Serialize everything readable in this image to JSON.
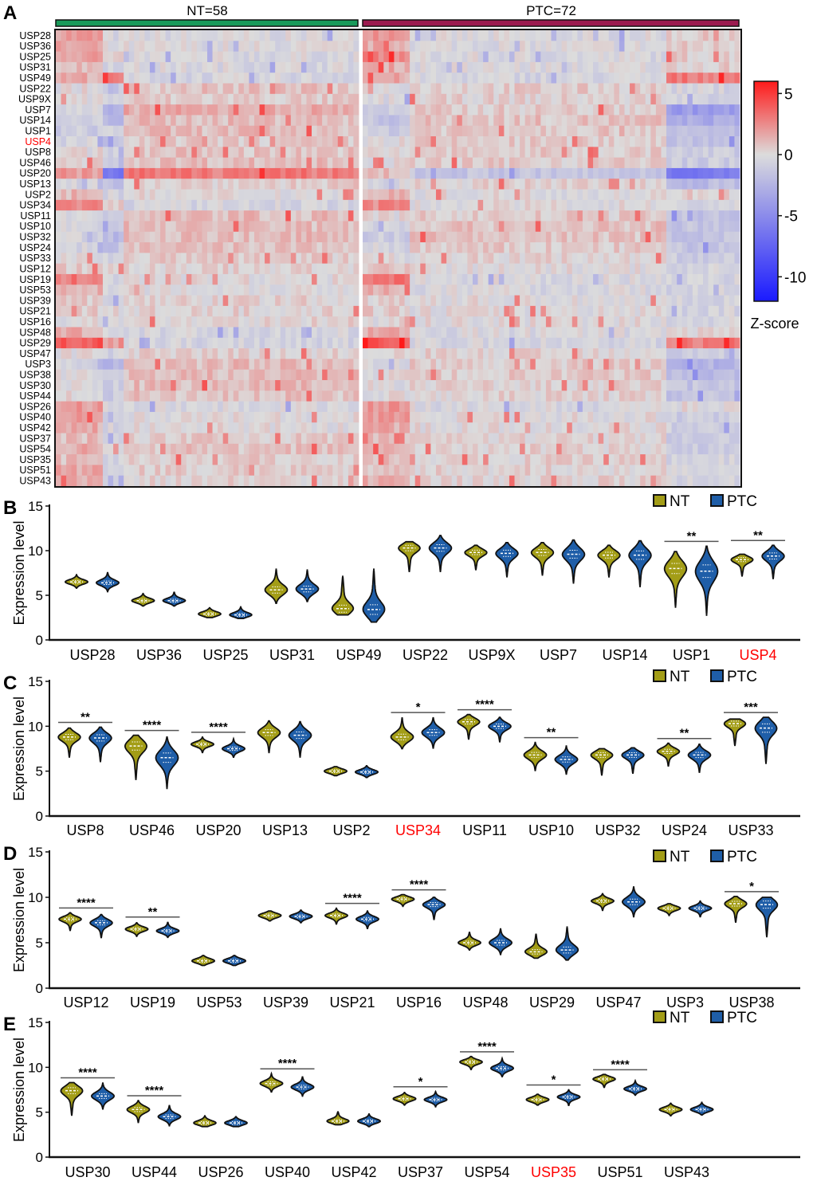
{
  "chart_data": [
    {
      "type": "heatmap",
      "panel_letter": "A",
      "groups": [
        {
          "label": "NT=58",
          "n": 58,
          "color": "#1a9a5a"
        },
        {
          "label": "PTC=72",
          "n": 72,
          "color": "#9b1b4f"
        }
      ],
      "highlight_color": "#ff0000",
      "highlighted_rows": [
        "USP4"
      ],
      "rows": [
        "USP28",
        "USP36",
        "USP25",
        "USP31",
        "USP49",
        "USP22",
        "USP9X",
        "USP7",
        "USP14",
        "USP1",
        "USP4",
        "USP8",
        "USP46",
        "USP20",
        "USP13",
        "USP2",
        "USP34",
        "USP11",
        "USP10",
        "USP32",
        "USP24",
        "USP33",
        "USP12",
        "USP19",
        "USP53",
        "USP39",
        "USP21",
        "USP16",
        "USP48",
        "USP29",
        "USP47",
        "USP3",
        "USP38",
        "USP30",
        "USP44",
        "USP26",
        "USP40",
        "USP42",
        "USP37",
        "USP54",
        "USP35",
        "USP51",
        "USP43"
      ],
      "column_clusters": {
        "nt": [
          9,
          4,
          45
        ],
        "ptc": [
          9,
          49,
          14
        ]
      },
      "row_cluster_mean_z": [
        [
          2,
          -0.5,
          -0.3,
          2.5,
          -0.3,
          0.5
        ],
        [
          1.5,
          -0.3,
          -0.2,
          1.5,
          -0.2,
          0.5
        ],
        [
          2,
          0,
          -0.3,
          2.5,
          -0.3,
          0.5
        ],
        [
          1,
          -0.3,
          -0.3,
          1.5,
          -0.2,
          0.5
        ],
        [
          1.5,
          2.5,
          -0.5,
          1.5,
          -0.5,
          3
        ],
        [
          0,
          -1.5,
          0.8,
          0,
          0.5,
          -0.5
        ],
        [
          0,
          -0.5,
          0.5,
          -0.3,
          0.3,
          -0.5
        ],
        [
          -0.5,
          -3,
          1.5,
          -1,
          0.5,
          -4
        ],
        [
          -1,
          -2,
          1,
          -1.5,
          0.8,
          -3
        ],
        [
          -1,
          -0.5,
          1,
          -1,
          0.8,
          -2
        ],
        [
          -0.5,
          -2,
          0.5,
          0,
          0.5,
          -1.5
        ],
        [
          0,
          -0.5,
          0.8,
          0,
          0.5,
          -1
        ],
        [
          0.3,
          -0.5,
          1,
          0,
          0.5,
          -1
        ],
        [
          2,
          -6,
          3,
          1,
          -1.5,
          -6
        ],
        [
          -0.5,
          -1.5,
          0.5,
          -0.5,
          0.3,
          -2
        ],
        [
          1.2,
          -0.5,
          0,
          1.2,
          0,
          0.5
        ],
        [
          2.5,
          0.5,
          -0.5,
          2.5,
          0,
          -0.5
        ],
        [
          0,
          -1.5,
          1,
          0,
          0.5,
          -1.5
        ],
        [
          -0.5,
          -1,
          1,
          -0.5,
          0.8,
          -1.5
        ],
        [
          -0.5,
          -2,
          1,
          -1,
          0.8,
          -1.5
        ],
        [
          -0.5,
          -1.5,
          0.8,
          -0.5,
          0.5,
          -1.5
        ],
        [
          0,
          -0.5,
          0.5,
          0,
          0.3,
          -1
        ],
        [
          0.5,
          0,
          0.3,
          0.5,
          0,
          -0.5
        ],
        [
          3,
          -0.5,
          0,
          3.5,
          -0.3,
          -0.5
        ],
        [
          1.5,
          -0.5,
          0,
          1.5,
          -0.3,
          -0.5
        ],
        [
          0.5,
          -0.5,
          0.3,
          0.3,
          0,
          -0.5
        ],
        [
          0.5,
          0,
          0.3,
          0.5,
          0,
          -0.5
        ],
        [
          0,
          -0.5,
          0.3,
          0,
          0,
          -0.5
        ],
        [
          1.5,
          0,
          -0.5,
          1.5,
          -0.3,
          0
        ],
        [
          4,
          2,
          -0.5,
          4,
          -0.5,
          3
        ],
        [
          0,
          -0.5,
          0.3,
          0,
          0.3,
          -1
        ],
        [
          -0.5,
          -2.5,
          1,
          -0.5,
          0.5,
          -2.5
        ],
        [
          0,
          -1.5,
          1,
          0,
          0.5,
          -2
        ],
        [
          0,
          -1,
          1,
          0,
          0.3,
          -1.5
        ],
        [
          0,
          -1,
          0.8,
          0,
          0.3,
          -1.5
        ],
        [
          2,
          0,
          -0.3,
          2,
          -0.3,
          0
        ],
        [
          2,
          -0.5,
          0,
          2,
          0,
          -1
        ],
        [
          1.5,
          -0.5,
          0,
          1.5,
          0,
          -1
        ],
        [
          1,
          -0.5,
          0.5,
          1,
          0.3,
          -1
        ],
        [
          1.5,
          0,
          0.8,
          1.5,
          0.3,
          -1
        ],
        [
          1,
          -0.5,
          0.5,
          1,
          0.3,
          -0.5
        ],
        [
          1.5,
          -0.5,
          0.5,
          1,
          0.3,
          -0.5
        ],
        [
          1.5,
          -0.5,
          0.3,
          1.5,
          0.3,
          -0.5
        ]
      ],
      "colorbar": {
        "title": "Z-score",
        "ticks": [
          5,
          0,
          -5,
          -10
        ],
        "tick_labels": [
          "5",
          "0",
          "-5",
          "-10"
        ],
        "range": [
          -12,
          6
        ],
        "colors": {
          "high": "#ff1a1a",
          "mid": "#dcdcdc",
          "low": "#1a1aff"
        }
      }
    },
    {
      "type": "violin",
      "panels": [
        {
          "letter": "B",
          "genes": [
            {
              "name": "USP28",
              "nt": [
                5.8,
                6.5,
                7.3
              ],
              "ptc": [
                5.4,
                6.4,
                7.6
              ],
              "sig": ""
            },
            {
              "name": "USP36",
              "nt": [
                3.8,
                4.4,
                5.2
              ],
              "ptc": [
                3.8,
                4.4,
                5.4
              ],
              "sig": ""
            },
            {
              "name": "USP25",
              "nt": [
                2.5,
                2.9,
                3.6
              ],
              "ptc": [
                2.4,
                2.8,
                3.7
              ],
              "sig": ""
            },
            {
              "name": "USP31",
              "nt": [
                4.1,
                5.6,
                8.0
              ],
              "ptc": [
                4.3,
                5.7,
                7.9
              ],
              "sig": ""
            },
            {
              "name": "USP49",
              "nt": [
                2.8,
                3.5,
                7.2
              ],
              "ptc": [
                2.0,
                3.4,
                8.0
              ],
              "sig": ""
            },
            {
              "name": "USP22",
              "nt": [
                7.6,
                10.3,
                11.0
              ],
              "ptc": [
                7.6,
                10.3,
                11.7
              ],
              "sig": ""
            },
            {
              "name": "USP9X",
              "nt": [
                7.8,
                9.8,
                10.6
              ],
              "ptc": [
                7.0,
                9.7,
                10.9
              ],
              "sig": ""
            },
            {
              "name": "USP7",
              "nt": [
                7.2,
                9.8,
                10.9
              ],
              "ptc": [
                6.3,
                9.6,
                11.2
              ],
              "sig": ""
            },
            {
              "name": "USP14",
              "nt": [
                7.0,
                9.5,
                10.6
              ],
              "ptc": [
                5.9,
                9.5,
                11.1
              ],
              "sig": ""
            },
            {
              "name": "USP1",
              "nt": [
                3.6,
                8.0,
                9.9
              ],
              "ptc": [
                2.7,
                7.7,
                10.5
              ],
              "sig": "**"
            },
            {
              "name": "USP4",
              "nt": [
                7.1,
                9.0,
                9.6
              ],
              "ptc": [
                6.8,
                9.4,
                10.6
              ],
              "sig": "**",
              "highlight": true
            }
          ]
        },
        {
          "letter": "C",
          "genes": [
            {
              "name": "USP8",
              "nt": [
                6.5,
                8.8,
                9.8
              ],
              "ptc": [
                6.0,
                8.7,
                9.9
              ],
              "sig": "**"
            },
            {
              "name": "USP46",
              "nt": [
                4.0,
                7.8,
                9.0
              ],
              "ptc": [
                3.0,
                6.5,
                8.8
              ],
              "sig": "****"
            },
            {
              "name": "USP20",
              "nt": [
                7.0,
                8.0,
                8.8
              ],
              "ptc": [
                6.5,
                7.5,
                8.6
              ],
              "sig": "****"
            },
            {
              "name": "USP13",
              "nt": [
                7.0,
                9.3,
                10.6
              ],
              "ptc": [
                6.5,
                9.0,
                10.5
              ],
              "sig": ""
            },
            {
              "name": "USP2",
              "nt": [
                4.5,
                5.0,
                5.5
              ],
              "ptc": [
                4.3,
                4.9,
                5.6
              ],
              "sig": ""
            },
            {
              "name": "USP34",
              "nt": [
                7.5,
                8.8,
                11.0
              ],
              "ptc": [
                7.5,
                9.3,
                11.0
              ],
              "sig": "*",
              "highlight": true
            },
            {
              "name": "USP11",
              "nt": [
                8.5,
                10.5,
                11.3
              ],
              "ptc": [
                8.2,
                10.0,
                11.0
              ],
              "sig": "****"
            },
            {
              "name": "USP10",
              "nt": [
                5.0,
                6.8,
                8.2
              ],
              "ptc": [
                4.6,
                6.3,
                7.8
              ],
              "sig": "**"
            },
            {
              "name": "USP32",
              "nt": [
                4.5,
                6.8,
                7.5
              ],
              "ptc": [
                4.7,
                6.8,
                7.6
              ],
              "sig": ""
            },
            {
              "name": "USP24",
              "nt": [
                5.5,
                7.2,
                8.1
              ],
              "ptc": [
                4.8,
                6.8,
                8.0
              ],
              "sig": "**"
            },
            {
              "name": "USP33",
              "nt": [
                7.8,
                10.3,
                10.8
              ],
              "ptc": [
                5.8,
                9.8,
                11.0
              ],
              "sig": "***"
            }
          ]
        },
        {
          "letter": "D",
          "genes": [
            {
              "name": "USP12",
              "nt": [
                6.3,
                7.6,
                8.3
              ],
              "ptc": [
                5.5,
                7.2,
                8.1
              ],
              "sig": "****"
            },
            {
              "name": "USP19",
              "nt": [
                5.7,
                6.5,
                7.2
              ],
              "ptc": [
                5.6,
                6.3,
                7.3
              ],
              "sig": "**"
            },
            {
              "name": "USP53",
              "nt": [
                2.5,
                3.0,
                3.6
              ],
              "ptc": [
                2.5,
                3.0,
                3.6
              ],
              "sig": ""
            },
            {
              "name": "USP39",
              "nt": [
                7.4,
                8.0,
                8.5
              ],
              "ptc": [
                7.2,
                7.9,
                8.6
              ],
              "sig": ""
            },
            {
              "name": "USP21",
              "nt": [
                7.0,
                8.0,
                8.8
              ],
              "ptc": [
                6.5,
                7.6,
                8.5
              ],
              "sig": "****"
            },
            {
              "name": "USP16",
              "nt": [
                9.0,
                9.8,
                10.3
              ],
              "ptc": [
                7.5,
                9.2,
                10.0
              ],
              "sig": "****"
            },
            {
              "name": "USP48",
              "nt": [
                4.2,
                5.0,
                6.2
              ],
              "ptc": [
                3.7,
                5.0,
                6.6
              ],
              "sig": ""
            },
            {
              "name": "USP29",
              "nt": [
                3.3,
                4.0,
                6.0
              ],
              "ptc": [
                3.1,
                4.2,
                6.8
              ],
              "sig": ""
            },
            {
              "name": "USP47",
              "nt": [
                8.5,
                9.6,
                10.4
              ],
              "ptc": [
                7.8,
                9.5,
                11.2
              ],
              "sig": ""
            },
            {
              "name": "USP3",
              "nt": [
                8.0,
                8.8,
                9.3
              ],
              "ptc": [
                7.8,
                8.8,
                9.6
              ],
              "sig": ""
            },
            {
              "name": "USP38",
              "nt": [
                7.2,
                9.3,
                10.1
              ],
              "ptc": [
                5.6,
                9.2,
                10.0
              ],
              "sig": "*"
            }
          ]
        },
        {
          "letter": "E",
          "genes": [
            {
              "name": "USP30",
              "nt": [
                4.6,
                7.4,
                8.3
              ],
              "ptc": [
                5.3,
                6.8,
                8.3
              ],
              "sig": "****"
            },
            {
              "name": "USP44",
              "nt": [
                3.8,
                5.3,
                6.3
              ],
              "ptc": [
                3.5,
                4.5,
                5.8
              ],
              "sig": "****"
            },
            {
              "name": "USP26",
              "nt": [
                3.4,
                3.8,
                4.6
              ],
              "ptc": [
                3.4,
                3.8,
                4.5
              ],
              "sig": ""
            },
            {
              "name": "USP40",
              "nt": [
                7.2,
                8.2,
                9.3
              ],
              "ptc": [
                6.8,
                7.8,
                9.0
              ],
              "sig": "****"
            },
            {
              "name": "USP42",
              "nt": [
                3.6,
                4.0,
                5.1
              ],
              "ptc": [
                3.4,
                4.0,
                4.8
              ],
              "sig": ""
            },
            {
              "name": "USP37",
              "nt": [
                5.8,
                6.5,
                7.2
              ],
              "ptc": [
                5.6,
                6.4,
                7.3
              ],
              "sig": "*"
            },
            {
              "name": "USP54",
              "nt": [
                9.7,
                10.6,
                11.2
              ],
              "ptc": [
                8.9,
                9.9,
                11.0
              ],
              "sig": "****"
            },
            {
              "name": "USP35",
              "nt": [
                5.8,
                6.4,
                7.0
              ],
              "ptc": [
                5.7,
                6.7,
                7.5
              ],
              "sig": "*",
              "highlight": true
            },
            {
              "name": "USP51",
              "nt": [
                7.7,
                8.7,
                9.2
              ],
              "ptc": [
                6.9,
                7.6,
                8.5
              ],
              "sig": "****"
            },
            {
              "name": "USP43",
              "nt": [
                4.6,
                5.3,
                6.0
              ],
              "ptc": [
                4.7,
                5.3,
                6.1
              ],
              "sig": ""
            }
          ]
        }
      ],
      "ylabel": "Expression level",
      "ylim": [
        0,
        15
      ],
      "yticks": [
        "0",
        "5",
        "10",
        "15"
      ],
      "legend": [
        {
          "label": "NT",
          "color": "#a39d17"
        },
        {
          "label": "PTC",
          "color": "#1f5ea8"
        }
      ],
      "highlight_color": "#ff0000"
    }
  ]
}
